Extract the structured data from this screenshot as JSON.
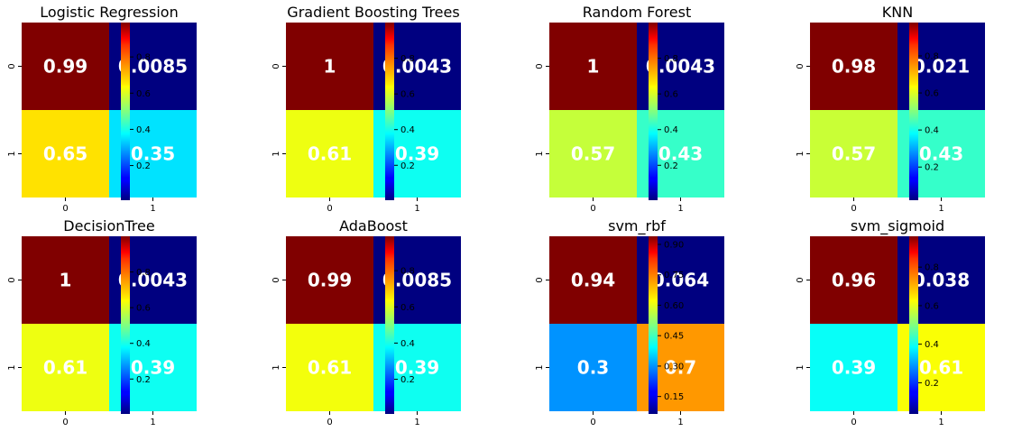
{
  "chart_data": [
    {
      "type": "heatmap",
      "title": "Logistic Regression",
      "x_ticks": [
        "0",
        "1"
      ],
      "y_ticks": [
        "0",
        "1"
      ],
      "values": [
        [
          0.99,
          0.0085
        ],
        [
          0.65,
          0.35
        ]
      ],
      "labels": [
        [
          "0.99",
          "0.0085"
        ],
        [
          "0.65",
          "0.35"
        ]
      ],
      "colorbar_ticks": [
        "0.2",
        "0.4",
        "0.6",
        "0.8"
      ],
      "colorbar_tick_values": [
        0.2,
        0.4,
        0.6,
        0.8
      ],
      "vmin": 0.0085,
      "vmax": 0.99,
      "colormap": "jet"
    },
    {
      "type": "heatmap",
      "title": "Gradient Boosting Trees",
      "x_ticks": [
        "0",
        "1"
      ],
      "y_ticks": [
        "0",
        "1"
      ],
      "values": [
        [
          1,
          0.0043
        ],
        [
          0.61,
          0.39
        ]
      ],
      "labels": [
        [
          "1",
          "0.0043"
        ],
        [
          "0.61",
          "0.39"
        ]
      ],
      "colorbar_ticks": [
        "0.2",
        "0.4",
        "0.6",
        "0.8"
      ],
      "colorbar_tick_values": [
        0.2,
        0.4,
        0.6,
        0.8
      ],
      "vmin": 0.0043,
      "vmax": 1,
      "colormap": "jet"
    },
    {
      "type": "heatmap",
      "title": "Random Forest",
      "x_ticks": [
        "0",
        "1"
      ],
      "y_ticks": [
        "0",
        "1"
      ],
      "values": [
        [
          1,
          0.0043
        ],
        [
          0.57,
          0.43
        ]
      ],
      "labels": [
        [
          "1",
          "0.0043"
        ],
        [
          "0.57",
          "0.43"
        ]
      ],
      "colorbar_ticks": [
        "0.2",
        "0.4",
        "0.6",
        "0.8"
      ],
      "colorbar_tick_values": [
        0.2,
        0.4,
        0.6,
        0.8
      ],
      "vmin": 0.0043,
      "vmax": 1,
      "colormap": "jet"
    },
    {
      "type": "heatmap",
      "title": "KNN",
      "x_ticks": [
        "0",
        "1"
      ],
      "y_ticks": [
        "0",
        "1"
      ],
      "values": [
        [
          0.98,
          0.021
        ],
        [
          0.57,
          0.43
        ]
      ],
      "labels": [
        [
          "0.98",
          "0.021"
        ],
        [
          "0.57",
          "0.43"
        ]
      ],
      "colorbar_ticks": [
        "0.2",
        "0.4",
        "0.6",
        "0.8"
      ],
      "colorbar_tick_values": [
        0.2,
        0.4,
        0.6,
        0.8
      ],
      "vmin": 0.021,
      "vmax": 0.98,
      "colormap": "jet"
    },
    {
      "type": "heatmap",
      "title": "DecisionTree",
      "x_ticks": [
        "0",
        "1"
      ],
      "y_ticks": [
        "0",
        "1"
      ],
      "values": [
        [
          1,
          0.0043
        ],
        [
          0.61,
          0.39
        ]
      ],
      "labels": [
        [
          "1",
          "0.0043"
        ],
        [
          "0.61",
          "0.39"
        ]
      ],
      "colorbar_ticks": [
        "0.2",
        "0.4",
        "0.6",
        "0.8"
      ],
      "colorbar_tick_values": [
        0.2,
        0.4,
        0.6,
        0.8
      ],
      "vmin": 0.0043,
      "vmax": 1,
      "colormap": "jet"
    },
    {
      "type": "heatmap",
      "title": "AdaBoost",
      "x_ticks": [
        "0",
        "1"
      ],
      "y_ticks": [
        "0",
        "1"
      ],
      "values": [
        [
          0.99,
          0.0085
        ],
        [
          0.61,
          0.39
        ]
      ],
      "labels": [
        [
          "0.99",
          "0.0085"
        ],
        [
          "0.61",
          "0.39"
        ]
      ],
      "colorbar_ticks": [
        "0.2",
        "0.4",
        "0.6",
        "0.8"
      ],
      "colorbar_tick_values": [
        0.2,
        0.4,
        0.6,
        0.8
      ],
      "vmin": 0.0085,
      "vmax": 0.99,
      "colormap": "jet"
    },
    {
      "type": "heatmap",
      "title": "svm_rbf",
      "x_ticks": [
        "0",
        "1"
      ],
      "y_ticks": [
        "0",
        "1"
      ],
      "values": [
        [
          0.94,
          0.064
        ],
        [
          0.3,
          0.7
        ]
      ],
      "labels": [
        [
          "0.94",
          "0.064"
        ],
        [
          "0.3",
          "0.7"
        ]
      ],
      "colorbar_ticks": [
        "0.15",
        "0.30",
        "0.45",
        "0.60",
        "0.75",
        "0.90"
      ],
      "colorbar_tick_values": [
        0.15,
        0.3,
        0.45,
        0.6,
        0.75,
        0.9
      ],
      "vmin": 0.064,
      "vmax": 0.94,
      "colormap": "jet"
    },
    {
      "type": "heatmap",
      "title": "svm_sigmoid",
      "x_ticks": [
        "0",
        "1"
      ],
      "y_ticks": [
        "0",
        "1"
      ],
      "values": [
        [
          0.96,
          0.038
        ],
        [
          0.39,
          0.61
        ]
      ],
      "labels": [
        [
          "0.96",
          "0.038"
        ],
        [
          "0.39",
          "0.61"
        ]
      ],
      "colorbar_ticks": [
        "0.2",
        "0.4",
        "0.6",
        "0.8"
      ],
      "colorbar_tick_values": [
        0.2,
        0.4,
        0.6,
        0.8
      ],
      "vmin": 0.038,
      "vmax": 0.96,
      "colormap": "jet"
    }
  ]
}
